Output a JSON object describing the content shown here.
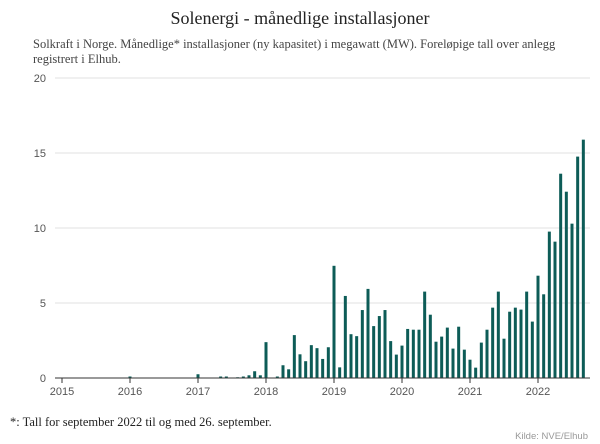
{
  "chart_data": {
    "type": "bar",
    "title": "Solenergi - månedlige installasjoner",
    "subtitle": "Solkraft i Norge. Månedlige* installasjoner (ny kapasitet) i megawatt (MW). Foreløpige tall over anlegg registrert i Elhub.",
    "note": "*: Tall for september 2022 til og med 26. september.",
    "source": "Kilde: NVE/Elhub",
    "xlabel": "",
    "ylabel": "",
    "ylim": [
      0,
      20
    ],
    "y_ticks": [
      "0",
      "5",
      "10",
      "15",
      "20"
    ],
    "x_ticks": [
      "2015",
      "2016",
      "2017",
      "2018",
      "2019",
      "2020",
      "2021",
      "2022"
    ],
    "grid": "horizontal",
    "color": "#0d5c57",
    "series": [
      {
        "year": 2015,
        "values": [
          0,
          0,
          0,
          0,
          0,
          0,
          0,
          0,
          0,
          0,
          0,
          0
        ]
      },
      {
        "year": 2016,
        "values": [
          0.1,
          0,
          0,
          0,
          0,
          0,
          0,
          0,
          0,
          0,
          0,
          0
        ]
      },
      {
        "year": 2017,
        "values": [
          0.25,
          0,
          0,
          0,
          0.1,
          0.1,
          0,
          0.05,
          0.1,
          0.18,
          0.45,
          0.18
        ]
      },
      {
        "year": 2018,
        "values": [
          2.39,
          0,
          0.1,
          0.85,
          0.58,
          2.86,
          1.58,
          1.12,
          2.19,
          1.99,
          1.27,
          2.05
        ]
      },
      {
        "year": 2019,
        "values": [
          7.48,
          0.71,
          5.47,
          2.92,
          2.79,
          4.53,
          5.94,
          3.46,
          4.13,
          4.53,
          2.46,
          1.56
        ]
      },
      {
        "year": 2020,
        "values": [
          2.16,
          3.27,
          3.22,
          3.22,
          5.76,
          4.22,
          2.42,
          2.76,
          3.36,
          1.96,
          3.42,
          1.89
        ]
      },
      {
        "year": 2021,
        "values": [
          1.22,
          0.69,
          2.36,
          3.22,
          4.69,
          5.76,
          2.62,
          4.42,
          4.69,
          4.56,
          5.76,
          3.76
        ]
      },
      {
        "year": 2022,
        "values": [
          6.82,
          5.58,
          9.76,
          9.09,
          13.62,
          12.42,
          10.29,
          14.76,
          15.89
        ]
      }
    ]
  }
}
